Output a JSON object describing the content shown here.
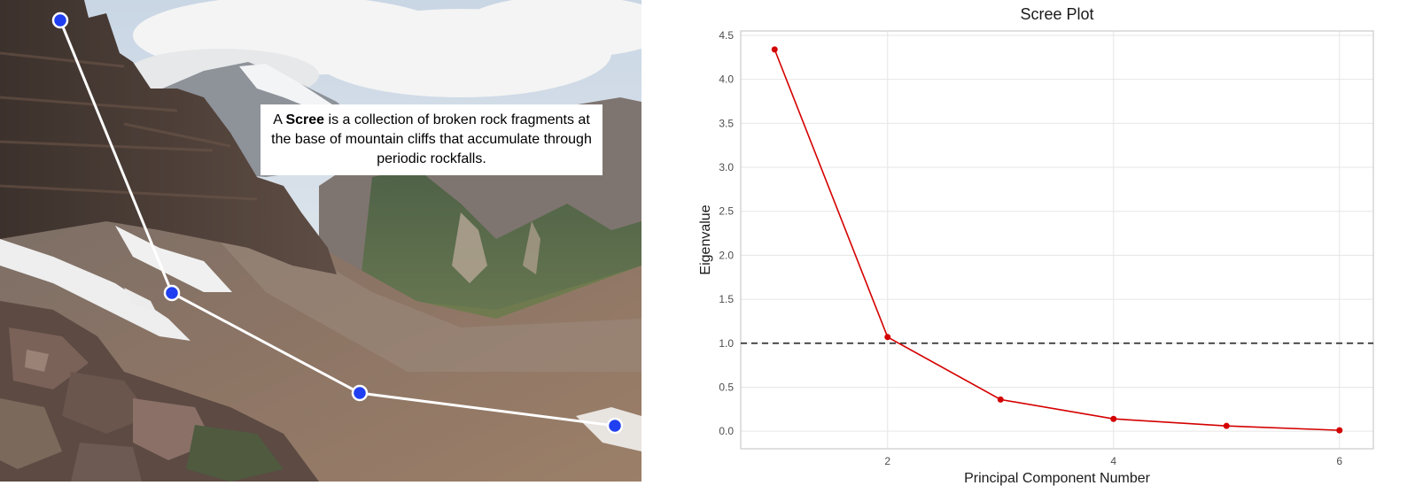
{
  "photo": {
    "caption_prefix": "A ",
    "caption_bold": "Scree",
    "caption_rest": " is a collection of broken rock fragments at the base of mountain cliffs that accumulate through periodic rockfalls.",
    "overlay_color": "#ffffff",
    "marker_color": "#1f3ff0"
  },
  "chart_data": {
    "type": "line",
    "title": "Scree Plot",
    "xlabel": "Principal Component Number",
    "ylabel": "Eigenvalue",
    "x": [
      1,
      2,
      3,
      4,
      5,
      6
    ],
    "series": [
      {
        "values": [
          4.34,
          1.07,
          0.36,
          0.14,
          0.06,
          0.01
        ],
        "color": "#d40000"
      }
    ],
    "reference_line": {
      "y": 1.0,
      "style": "dashed",
      "color": "#333333"
    },
    "xlim": [
      0.7,
      6.3
    ],
    "ylim": [
      -0.2,
      4.55
    ],
    "xticks": [
      2,
      4,
      6
    ],
    "yticks": [
      0.0,
      0.5,
      1.0,
      1.5,
      2.0,
      2.5,
      3.0,
      3.5,
      4.0,
      4.5
    ],
    "ytick_labels": [
      "0.0",
      "0.5",
      "1.0",
      "1.5",
      "2.0",
      "2.5",
      "3.0",
      "3.5",
      "4.0",
      "4.5"
    ],
    "grid": true,
    "background": "#ffffff",
    "frame_color": "#cccccc"
  }
}
